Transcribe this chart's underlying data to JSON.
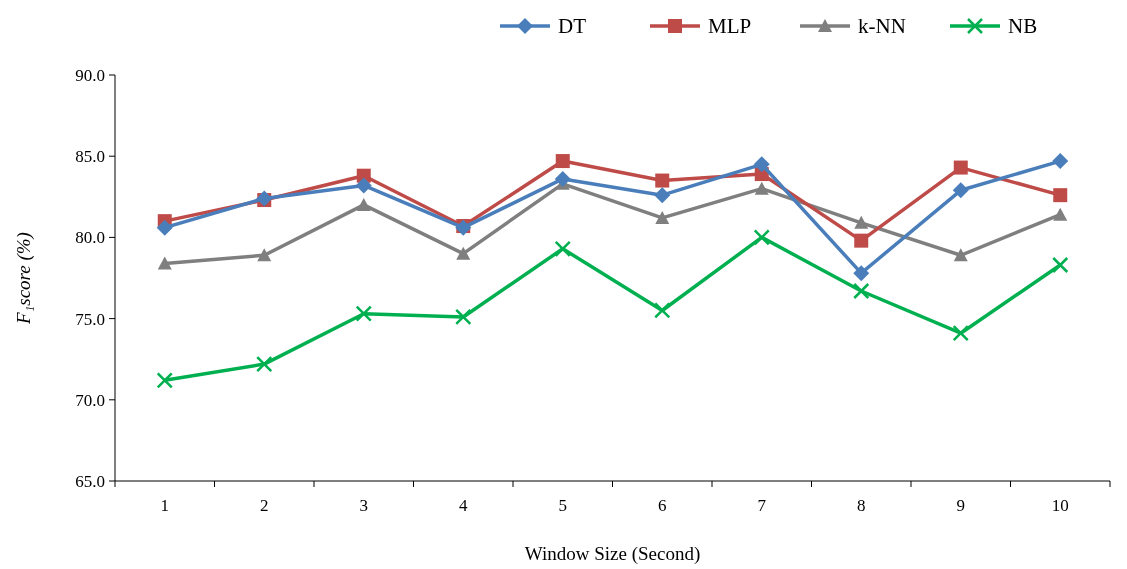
{
  "chart_data": {
    "type": "line",
    "xlabel": "Window Size (Second)",
    "ylabel": "F₁score (%)",
    "categories": [
      "1",
      "2",
      "3",
      "4",
      "5",
      "6",
      "7",
      "8",
      "9",
      "10"
    ],
    "ylim": [
      65,
      90
    ],
    "yticks": [
      {
        "value": 65,
        "label": "65.0"
      },
      {
        "value": 70,
        "label": "70.0"
      },
      {
        "value": 75,
        "label": "75.0"
      },
      {
        "value": 80,
        "label": "80.0"
      },
      {
        "value": 85,
        "label": "85.0"
      },
      {
        "value": 90,
        "label": "90.0"
      }
    ],
    "grid": false,
    "legend": "top right",
    "line_style": "solid",
    "series": [
      {
        "name": "DT",
        "color": "#4a7ebb",
        "marker": "diamond",
        "values": [
          80.6,
          82.4,
          83.2,
          80.6,
          83.6,
          82.6,
          84.5,
          77.8,
          82.9,
          84.7
        ]
      },
      {
        "name": "MLP",
        "color": "#be4b48",
        "marker": "square",
        "values": [
          81.0,
          82.3,
          83.8,
          80.7,
          84.7,
          83.5,
          83.9,
          79.8,
          84.3,
          82.6
        ]
      },
      {
        "name": "k-NN",
        "color": "#7f7f7f",
        "marker": "triangle",
        "values": [
          78.4,
          78.9,
          82.0,
          79.0,
          83.3,
          81.2,
          83.0,
          80.9,
          78.9,
          81.4
        ]
      },
      {
        "name": "NB",
        "color": "#00b050",
        "marker": "cross",
        "values": [
          71.2,
          72.2,
          75.3,
          75.1,
          79.3,
          75.5,
          80.0,
          76.7,
          74.1,
          78.3
        ]
      }
    ]
  }
}
